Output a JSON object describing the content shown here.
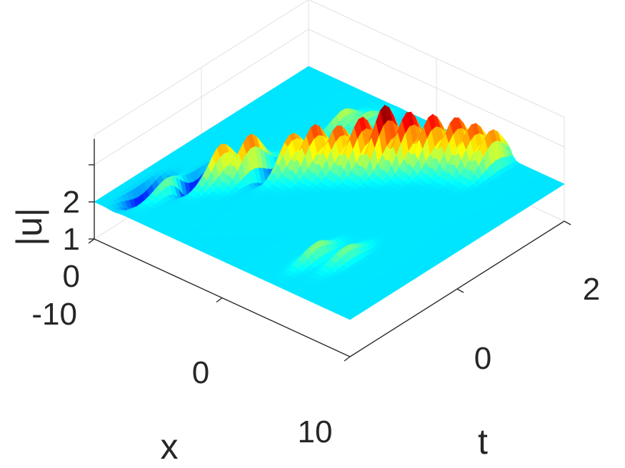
{
  "chart_data": {
    "type": "surface",
    "title": "",
    "xlabel": "x",
    "ylabel": "t",
    "zlabel": "|u|",
    "xlim": [
      -10,
      10
    ],
    "ylim": [
      -2,
      2
    ],
    "zlim": [
      0,
      2.8
    ],
    "x_ticks": [
      "-10",
      "0",
      "10"
    ],
    "y_ticks": [
      "0",
      "2"
    ],
    "z_ticks": [
      "0",
      "1",
      "2"
    ],
    "background_level": 1,
    "colormap": "jet",
    "grid": true,
    "peaks": [
      {
        "x": -8.5,
        "t": -1.4,
        "z": 0.15
      },
      {
        "x": -7.5,
        "t": -1.2,
        "z": 1.4
      },
      {
        "x": -7.0,
        "t": -0.8,
        "z": 0.05
      },
      {
        "x": -6.0,
        "t": -0.6,
        "z": 1.9
      },
      {
        "x": -5.0,
        "t": -0.3,
        "z": 2.05
      },
      {
        "x": -4.0,
        "t": 0.0,
        "z": 0.3
      },
      {
        "x": -3.5,
        "t": 0.1,
        "z": 2.1
      },
      {
        "x": -2.5,
        "t": 0.3,
        "z": 2.15
      },
      {
        "x": -1.5,
        "t": 0.5,
        "z": 2.1
      },
      {
        "x": -0.5,
        "t": 0.7,
        "z": 2.3
      },
      {
        "x": 0.5,
        "t": 0.9,
        "z": 2.6
      },
      {
        "x": 1.5,
        "t": 1.1,
        "z": 2.4
      },
      {
        "x": 2.5,
        "t": 1.3,
        "z": 2.3
      },
      {
        "x": 3.5,
        "t": 1.5,
        "z": 2.2
      },
      {
        "x": 4.5,
        "t": 1.6,
        "z": 2.1
      },
      {
        "x": 5.5,
        "t": 1.7,
        "z": 2.0
      },
      {
        "x": -4.0,
        "t": 1.2,
        "z": 1.5
      },
      {
        "x": -3.0,
        "t": 1.4,
        "z": 1.4
      },
      {
        "x": 4.0,
        "t": -1.2,
        "z": 1.4
      },
      {
        "x": 5.5,
        "t": -1.0,
        "z": 1.35
      }
    ]
  }
}
